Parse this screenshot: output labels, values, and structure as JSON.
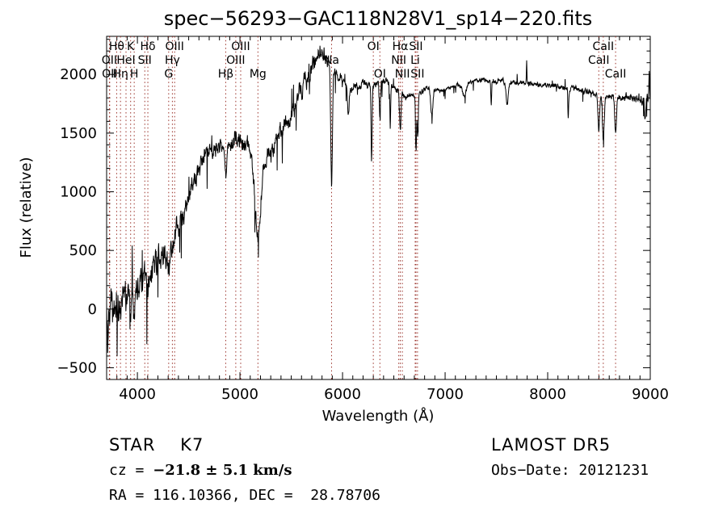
{
  "title": "spec−56293−GAC118N28V1_sp14−220.fits",
  "background": "#ffffff",
  "axes": {
    "x_label": "Wavelength (Å)",
    "y_label": "Flux (relative)",
    "x_ticks": [
      4000,
      5000,
      6000,
      7000,
      8000,
      9000
    ],
    "y_ticks": [
      -500,
      0,
      500,
      1000,
      1500,
      2000
    ],
    "x_range": [
      3700,
      9000
    ],
    "y_range": [
      -600,
      2325
    ],
    "x_minor_step": 100,
    "y_minor_step": 100
  },
  "chart_data": {
    "type": "line",
    "title": "spec−56293−GAC118N28V1_sp14−220.fits",
    "xlabel": "Wavelength (Å)",
    "ylabel": "Flux (relative)",
    "xlim": [
      3700,
      9000
    ],
    "ylim": [
      -600,
      2325
    ],
    "grid": false,
    "legend": "none",
    "spectrum_color": "#000000",
    "marker_color": "#9a3028",
    "continuum_points": [
      [
        3700,
        -60
      ],
      [
        3800,
        20
      ],
      [
        3900,
        120
      ],
      [
        4000,
        210
      ],
      [
        4100,
        290
      ],
      [
        4200,
        380
      ],
      [
        4300,
        520
      ],
      [
        4400,
        700
      ],
      [
        4500,
        920
      ],
      [
        4600,
        1220
      ],
      [
        4680,
        1350
      ],
      [
        4760,
        1390
      ],
      [
        4860,
        1400
      ],
      [
        4960,
        1440
      ],
      [
        5040,
        1400
      ],
      [
        5140,
        1300
      ],
      [
        5220,
        1280
      ],
      [
        5300,
        1350
      ],
      [
        5400,
        1500
      ],
      [
        5500,
        1660
      ],
      [
        5600,
        1860
      ],
      [
        5700,
        2060
      ],
      [
        5780,
        2180
      ],
      [
        5840,
        2160
      ],
      [
        5920,
        2010
      ],
      [
        6000,
        1950
      ],
      [
        6080,
        1870
      ],
      [
        6200,
        1920
      ],
      [
        6300,
        1900
      ],
      [
        6400,
        1950
      ],
      [
        6520,
        1870
      ],
      [
        6620,
        1810
      ],
      [
        6720,
        1830
      ],
      [
        6820,
        1880
      ],
      [
        6950,
        1860
      ],
      [
        7100,
        1900
      ],
      [
        7300,
        1950
      ],
      [
        7500,
        1940
      ],
      [
        7700,
        1930
      ],
      [
        7900,
        1910
      ],
      [
        8100,
        1900
      ],
      [
        8300,
        1870
      ],
      [
        8500,
        1830
      ],
      [
        8700,
        1810
      ],
      [
        8900,
        1790
      ],
      [
        9000,
        1810
      ]
    ],
    "noise_profile": [
      [
        3700,
        190
      ],
      [
        4000,
        150
      ],
      [
        4400,
        120
      ],
      [
        4800,
        75
      ],
      [
        5200,
        90
      ],
      [
        5600,
        110
      ],
      [
        5800,
        80
      ],
      [
        6000,
        45
      ],
      [
        6300,
        35
      ],
      [
        6600,
        30
      ],
      [
        7000,
        22
      ],
      [
        7600,
        25
      ],
      [
        8300,
        28
      ],
      [
        8700,
        35
      ],
      [
        9000,
        55
      ]
    ],
    "absorption_features": [
      [
        3712,
        350,
        5
      ],
      [
        3933,
        200,
        6
      ],
      [
        3968,
        180,
        6
      ],
      [
        4101,
        180,
        7
      ],
      [
        4305,
        200,
        10
      ],
      [
        4341,
        150,
        7
      ],
      [
        4861,
        260,
        8
      ],
      [
        5175,
        680,
        28
      ],
      [
        5893,
        1020,
        8
      ],
      [
        6055,
        280,
        8
      ],
      [
        6283,
        640,
        5
      ],
      [
        6364,
        300,
        5
      ],
      [
        6465,
        350,
        4
      ],
      [
        6563,
        300,
        7
      ],
      [
        6717,
        460,
        5
      ],
      [
        6733,
        380,
        5
      ],
      [
        6870,
        230,
        10
      ],
      [
        7186,
        100,
        20
      ],
      [
        7450,
        200,
        4
      ],
      [
        7605,
        200,
        10
      ],
      [
        8200,
        250,
        4
      ],
      [
        8498,
        310,
        8
      ],
      [
        8542,
        390,
        9
      ],
      [
        8662,
        320,
        8
      ],
      [
        8950,
        180,
        6
      ]
    ],
    "emission_spikes": [
      [
        5577,
        120,
        3
      ],
      [
        7795,
        190,
        3
      ],
      [
        8990,
        170,
        3
      ]
    ],
    "line_markers": [
      {
        "label": "OII",
        "wavelength": 3727,
        "row": 2
      },
      {
        "label": "OII",
        "wavelength": 3730,
        "row": 3
      },
      {
        "label": "Hθ",
        "wavelength": 3798,
        "row": 1
      },
      {
        "label": "Hη",
        "wavelength": 3835,
        "row": 3
      },
      {
        "label": "HeI",
        "wavelength": 3889,
        "row": 2
      },
      {
        "label": "K",
        "wavelength": 3934,
        "row": 1
      },
      {
        "label": "H",
        "wavelength": 3969,
        "row": 3
      },
      {
        "label": "SII",
        "wavelength": 4072,
        "row": 2
      },
      {
        "label": "Hδ",
        "wavelength": 4102,
        "row": 1
      },
      {
        "label": "G",
        "wavelength": 4305,
        "row": 3
      },
      {
        "label": "Hγ",
        "wavelength": 4341,
        "row": 2
      },
      {
        "label": "OIII",
        "wavelength": 4363,
        "row": 1
      },
      {
        "label": "Hβ",
        "wavelength": 4861,
        "row": 3
      },
      {
        "label": "OIII",
        "wavelength": 4959,
        "row": 2
      },
      {
        "label": "OIII",
        "wavelength": 5007,
        "row": 1
      },
      {
        "label": "Mg",
        "wavelength": 5175,
        "row": 3
      },
      {
        "label": "Na",
        "wavelength": 5893,
        "row": 2
      },
      {
        "label": "OI",
        "wavelength": 6300,
        "row": 1
      },
      {
        "label": "OI",
        "wavelength": 6364,
        "row": 3
      },
      {
        "label": "NII",
        "wavelength": 6548,
        "row": 2
      },
      {
        "label": "Hα",
        "wavelength": 6563,
        "row": 1
      },
      {
        "label": "NII",
        "wavelength": 6583,
        "row": 3
      },
      {
        "label": "Li",
        "wavelength": 6708,
        "row": 2
      },
      {
        "label": "SII",
        "wavelength": 6716,
        "row": 1
      },
      {
        "label": "SII",
        "wavelength": 6731,
        "row": 3
      },
      {
        "label": "CaII",
        "wavelength": 8498,
        "row": 2
      },
      {
        "label": "CaII",
        "wavelength": 8542,
        "row": 1
      },
      {
        "label": "CaII",
        "wavelength": 8662,
        "row": 3
      }
    ]
  },
  "annotations": {
    "class_label": "STAR    K7",
    "cz_prefix": "cz = ",
    "cz_value": "−21.8 ± 5.1 km/s",
    "ra_dec": "RA = 116.10366, DEC =  28.78706",
    "survey": "LAMOST DR5",
    "obs_date": "Obs−Date: 20121231"
  }
}
